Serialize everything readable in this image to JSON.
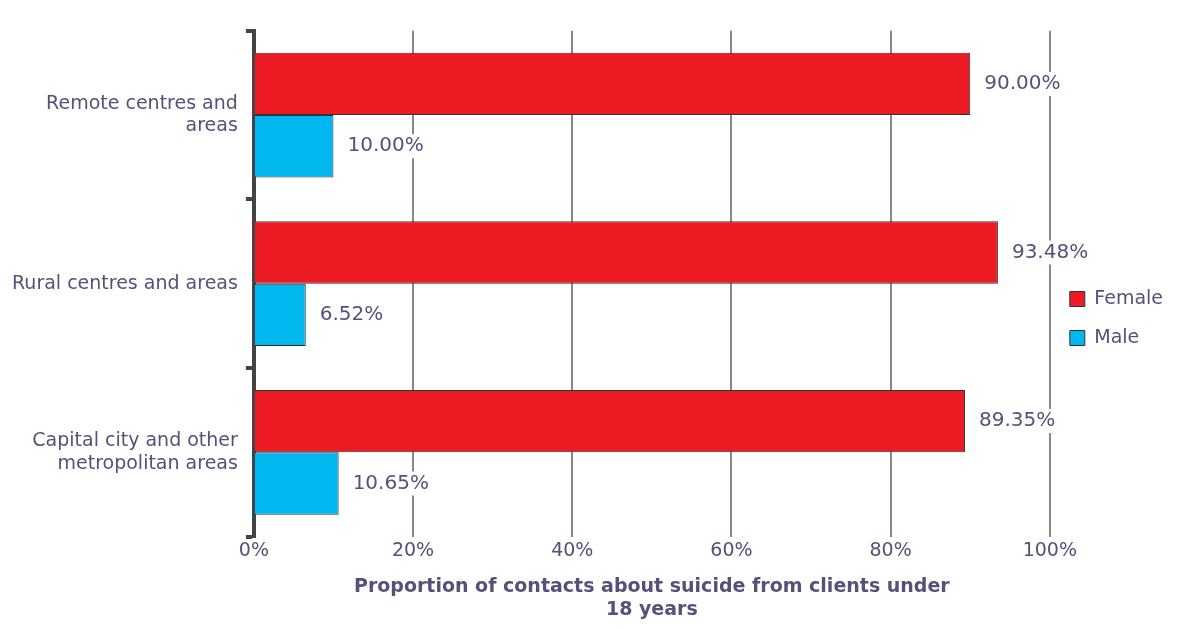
{
  "chart_data": {
    "type": "bar",
    "orientation": "horizontal",
    "xlabel": "Proportion of contacts about suicide from clients under 18 years",
    "categories": [
      "Remote centres and areas",
      "Rural centres and areas",
      "Capital city and other metropolitan areas"
    ],
    "series": [
      {
        "name": "Female",
        "color": "#ed1c24",
        "values": [
          90.0,
          93.48,
          89.35
        ],
        "value_labels": [
          "90.00%",
          "93.48%",
          "89.35%"
        ]
      },
      {
        "name": "Male",
        "color": "#00b7f0",
        "values": [
          10.0,
          6.52,
          10.65
        ],
        "value_labels": [
          "10.00%",
          "6.52%",
          "10.65%"
        ]
      }
    ],
    "xlim": [
      0,
      100
    ],
    "xticks": [
      {
        "value": 0,
        "label": "0%"
      },
      {
        "value": 20,
        "label": "20%"
      },
      {
        "value": 40,
        "label": "40%"
      },
      {
        "value": 60,
        "label": "60%"
      },
      {
        "value": 80,
        "label": "80%"
      },
      {
        "value": 100,
        "label": "100%"
      }
    ],
    "grid": "x",
    "legend": "right"
  }
}
